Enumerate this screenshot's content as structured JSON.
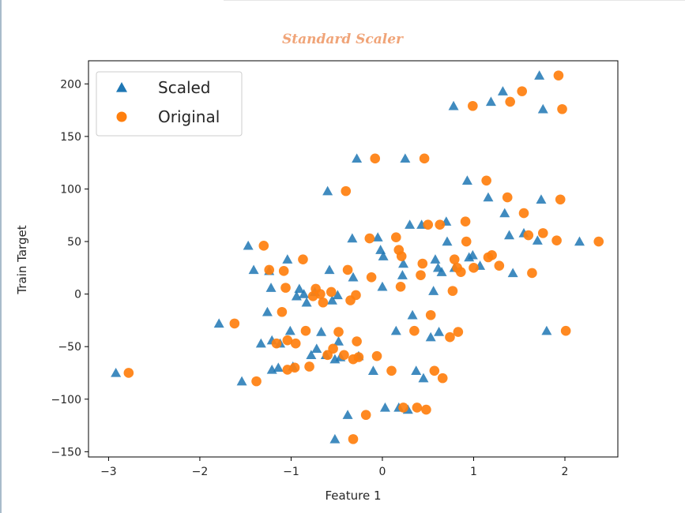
{
  "chart_data": {
    "type": "scatter",
    "title": "Standard Scaler",
    "xlabel": "Feature 1",
    "ylabel": "Train Target",
    "xlim": [
      -3.22,
      2.58
    ],
    "ylim": [
      -155,
      222
    ],
    "x_ticks": [
      -3,
      -2,
      -1,
      0,
      1,
      2
    ],
    "y_ticks": [
      -150,
      -100,
      -50,
      0,
      50,
      100,
      150,
      200
    ],
    "x_tick_labels": [
      "−3",
      "−2",
      "−1",
      "0",
      "1",
      "2"
    ],
    "y_tick_labels": [
      "−150",
      "−100",
      "−50",
      "0",
      "50",
      "100",
      "150",
      "200"
    ],
    "grid": false,
    "legend_position": "top-left",
    "series": [
      {
        "name": "Scaled",
        "marker": "triangle",
        "color": "#1f77b4",
        "points": [
          [
            -2.92,
            -75
          ],
          [
            -1.79,
            -28
          ],
          [
            -1.54,
            -83
          ],
          [
            -1.47,
            46
          ],
          [
            -1.41,
            23
          ],
          [
            -1.33,
            -47
          ],
          [
            -1.26,
            -17
          ],
          [
            -1.24,
            22
          ],
          [
            -1.22,
            6
          ],
          [
            -1.21,
            -44
          ],
          [
            -1.21,
            -72
          ],
          [
            -1.14,
            -70
          ],
          [
            -1.12,
            -47
          ],
          [
            -1.04,
            33
          ],
          [
            -1.01,
            -35
          ],
          [
            -0.98,
            -69
          ],
          [
            -0.94,
            -2
          ],
          [
            -0.91,
            5
          ],
          [
            -0.86,
            0
          ],
          [
            -0.83,
            -8
          ],
          [
            -0.78,
            -58
          ],
          [
            -0.74,
            2
          ],
          [
            -0.72,
            -52
          ],
          [
            -0.67,
            -36
          ],
          [
            -0.62,
            -58
          ],
          [
            -0.6,
            98
          ],
          [
            -0.58,
            23
          ],
          [
            -0.55,
            -6
          ],
          [
            -0.52,
            -62
          ],
          [
            -0.52,
            -138
          ],
          [
            -0.49,
            -1
          ],
          [
            -0.48,
            -45
          ],
          [
            -0.46,
            -60
          ],
          [
            -0.38,
            -115
          ],
          [
            -0.33,
            53
          ],
          [
            -0.32,
            16
          ],
          [
            -0.28,
            129
          ],
          [
            -0.26,
            -59
          ],
          [
            -0.1,
            -73
          ],
          [
            -0.05,
            54
          ],
          [
            -0.02,
            42
          ],
          [
            0.0,
            7
          ],
          [
            0.01,
            36
          ],
          [
            0.03,
            -108
          ],
          [
            0.15,
            -35
          ],
          [
            0.18,
            -108
          ],
          [
            0.22,
            18
          ],
          [
            0.23,
            29
          ],
          [
            0.25,
            129
          ],
          [
            0.28,
            -110
          ],
          [
            0.3,
            66
          ],
          [
            0.33,
            -20
          ],
          [
            0.37,
            -73
          ],
          [
            0.43,
            66
          ],
          [
            0.45,
            -80
          ],
          [
            0.53,
            -41
          ],
          [
            0.56,
            3
          ],
          [
            0.58,
            33
          ],
          [
            0.61,
            25
          ],
          [
            0.62,
            -36
          ],
          [
            0.65,
            21
          ],
          [
            0.7,
            69
          ],
          [
            0.71,
            50
          ],
          [
            0.78,
            179
          ],
          [
            0.79,
            25
          ],
          [
            0.93,
            108
          ],
          [
            0.95,
            35
          ],
          [
            0.99,
            37
          ],
          [
            1.07,
            27
          ],
          [
            1.16,
            92
          ],
          [
            1.19,
            183
          ],
          [
            1.32,
            193
          ],
          [
            1.34,
            77
          ],
          [
            1.39,
            56
          ],
          [
            1.43,
            20
          ],
          [
            1.55,
            58
          ],
          [
            1.7,
            51
          ],
          [
            1.72,
            208
          ],
          [
            1.74,
            90
          ],
          [
            1.76,
            176
          ],
          [
            1.8,
            -35
          ],
          [
            2.16,
            50
          ]
        ]
      },
      {
        "name": "Original",
        "marker": "circle",
        "color": "#ff7f0e",
        "points": [
          [
            -2.78,
            -75
          ],
          [
            -1.62,
            -28
          ],
          [
            -1.38,
            -83
          ],
          [
            -1.3,
            46
          ],
          [
            -1.24,
            23
          ],
          [
            -1.16,
            -47
          ],
          [
            -1.1,
            -17
          ],
          [
            -1.08,
            22
          ],
          [
            -1.06,
            6
          ],
          [
            -1.04,
            -44
          ],
          [
            -1.04,
            -72
          ],
          [
            -0.96,
            -70
          ],
          [
            -0.95,
            -47
          ],
          [
            -0.87,
            33
          ],
          [
            -0.84,
            -35
          ],
          [
            -0.8,
            -69
          ],
          [
            -0.76,
            -2
          ],
          [
            -0.73,
            5
          ],
          [
            -0.68,
            0
          ],
          [
            -0.65,
            -8
          ],
          [
            -0.6,
            -58
          ],
          [
            -0.56,
            2
          ],
          [
            -0.54,
            -52
          ],
          [
            -0.48,
            -36
          ],
          [
            -0.42,
            -58
          ],
          [
            -0.4,
            98
          ],
          [
            -0.38,
            23
          ],
          [
            -0.35,
            -6
          ],
          [
            -0.32,
            -62
          ],
          [
            -0.32,
            -138
          ],
          [
            -0.29,
            -1
          ],
          [
            -0.28,
            -45
          ],
          [
            -0.26,
            -60
          ],
          [
            -0.18,
            -115
          ],
          [
            -0.14,
            53
          ],
          [
            -0.12,
            16
          ],
          [
            -0.08,
            129
          ],
          [
            -0.06,
            -59
          ],
          [
            0.1,
            -73
          ],
          [
            0.15,
            54
          ],
          [
            0.18,
            42
          ],
          [
            0.2,
            7
          ],
          [
            0.21,
            36
          ],
          [
            0.23,
            -108
          ],
          [
            0.35,
            -35
          ],
          [
            0.38,
            -108
          ],
          [
            0.42,
            18
          ],
          [
            0.44,
            29
          ],
          [
            0.46,
            129
          ],
          [
            0.48,
            -110
          ],
          [
            0.5,
            66
          ],
          [
            0.53,
            -20
          ],
          [
            0.57,
            -73
          ],
          [
            0.63,
            66
          ],
          [
            0.66,
            -80
          ],
          [
            0.74,
            -41
          ],
          [
            0.77,
            3
          ],
          [
            0.79,
            33
          ],
          [
            0.82,
            25
          ],
          [
            0.83,
            -36
          ],
          [
            0.86,
            21
          ],
          [
            0.91,
            69
          ],
          [
            0.92,
            50
          ],
          [
            0.99,
            179
          ],
          [
            1.0,
            25
          ],
          [
            1.14,
            108
          ],
          [
            1.16,
            35
          ],
          [
            1.2,
            37
          ],
          [
            1.28,
            27
          ],
          [
            1.37,
            92
          ],
          [
            1.4,
            183
          ],
          [
            1.53,
            193
          ],
          [
            1.55,
            77
          ],
          [
            1.6,
            56
          ],
          [
            1.64,
            20
          ],
          [
            1.76,
            58
          ],
          [
            1.91,
            51
          ],
          [
            1.93,
            208
          ],
          [
            1.95,
            90
          ],
          [
            1.97,
            176
          ],
          [
            2.01,
            -35
          ],
          [
            2.37,
            50
          ]
        ]
      }
    ]
  }
}
